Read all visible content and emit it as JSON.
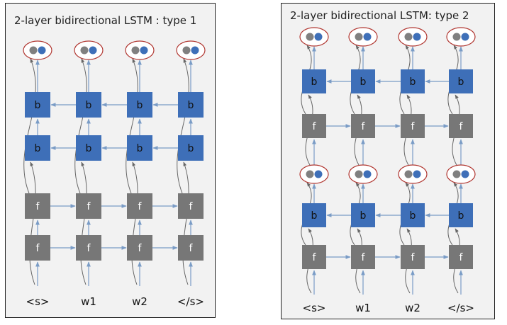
{
  "diagrams": [
    {
      "title": "2-layer bidirectional LSTM : type 1",
      "columns": [
        "<s>",
        "w1",
        "w2",
        "</s>"
      ],
      "stack_bottom_to_top": [
        "f",
        "f",
        "b",
        "b"
      ],
      "output": "concat"
    },
    {
      "title": "2-layer bidirectional LSTM: type 2",
      "columns": [
        "<s>",
        "w1",
        "w2",
        "</s>"
      ],
      "stack_bottom_to_top": [
        "f",
        "b",
        "concat",
        "f",
        "b",
        "concat"
      ]
    }
  ],
  "colors": {
    "forward_cell": "#777777",
    "backward_cell": "#3e6fb8",
    "arrow": "#7a9cc6",
    "skip_curve": "#666666",
    "output_ring": "#b0352f",
    "output_left_dot": "#808080",
    "output_right_dot": "#3e6fb8",
    "panel_bg": "#f2f2f2"
  }
}
